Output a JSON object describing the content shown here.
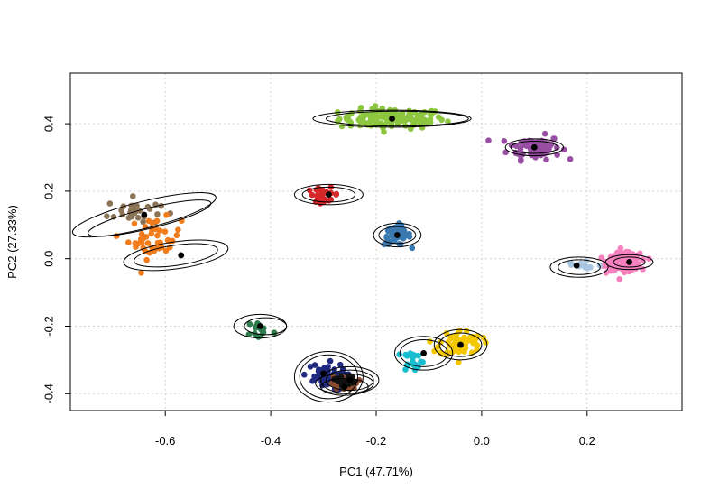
{
  "chart_data": {
    "type": "scatter",
    "title": "",
    "xlabel": "PC1 (47.71%)",
    "ylabel": "PC2 (27.33%)",
    "xlim": [
      -0.78,
      0.38
    ],
    "ylim": [
      -0.45,
      0.55
    ],
    "xticks": [
      -0.6,
      -0.4,
      -0.2,
      0.0,
      0.2
    ],
    "xtick_labels": [
      "-0.6",
      "-0.4",
      "-0.2",
      "0.0",
      "0.2"
    ],
    "yticks": [
      -0.4,
      -0.2,
      0.0,
      0.2,
      0.4
    ],
    "ytick_labels": [
      "-0.4",
      "-0.2",
      "0.0",
      "0.2",
      "0.4"
    ],
    "grid": true,
    "legend": "none",
    "series": [
      {
        "color": "#8dc63f",
        "center": [
          -0.17,
          0.415
        ],
        "spread": [
          0.1,
          0.03
        ],
        "n": 120,
        "ellipses": [
          {
            "c": [
              -0.17,
              0.415
            ],
            "r": [
              0.15,
              0.025
            ],
            "angle": 0
          },
          {
            "c": [
              -0.16,
              0.415
            ],
            "r": [
              0.135,
              0.022
            ],
            "angle": 0
          }
        ]
      },
      {
        "color": "#984ea3",
        "center": [
          0.1,
          0.33
        ],
        "spread": [
          0.05,
          0.035
        ],
        "n": 80,
        "ellipses": [
          {
            "c": [
              0.1,
              0.33
            ],
            "r": [
              0.055,
              0.025
            ],
            "angle": 0
          },
          {
            "c": [
              0.1,
              0.33
            ],
            "r": [
              0.045,
              0.018
            ],
            "angle": 0
          }
        ]
      },
      {
        "color": "#8b7355",
        "center": [
          -0.66,
          0.14
        ],
        "spread": [
          0.05,
          0.04
        ],
        "n": 30,
        "ellipses": [
          {
            "c": [
              -0.64,
              0.13
            ],
            "r": [
              0.14,
              0.04
            ],
            "angle": -14
          },
          {
            "c": [
              -0.63,
              0.12
            ],
            "r": [
              0.12,
              0.03
            ],
            "angle": -14
          }
        ]
      },
      {
        "color": "#f07c1c",
        "center": [
          -0.62,
          0.06
        ],
        "spread": [
          0.05,
          0.06
        ],
        "n": 45,
        "ellipses": [
          {
            "c": [
              -0.58,
              0.01
            ],
            "r": [
              0.1,
              0.04
            ],
            "angle": -8
          },
          {
            "c": [
              -0.58,
              0.01
            ],
            "r": [
              0.08,
              0.03
            ],
            "angle": -8
          }
        ]
      },
      {
        "color": "#d62728",
        "center": [
          -0.3,
          0.19
        ],
        "spread": [
          0.03,
          0.02
        ],
        "n": 25,
        "ellipses": [
          {
            "c": [
              -0.29,
              0.19
            ],
            "r": [
              0.065,
              0.03
            ],
            "angle": 0
          },
          {
            "c": [
              -0.29,
              0.19
            ],
            "r": [
              0.05,
              0.022
            ],
            "angle": 0
          }
        ]
      },
      {
        "color": "#3a78b0",
        "center": [
          -0.16,
          0.07
        ],
        "spread": [
          0.025,
          0.03
        ],
        "n": 55,
        "ellipses": [
          {
            "c": [
              -0.16,
              0.07
            ],
            "r": [
              0.045,
              0.035
            ],
            "angle": 0
          },
          {
            "c": [
              -0.16,
              0.07
            ],
            "r": [
              0.035,
              0.025
            ],
            "angle": 0
          }
        ]
      },
      {
        "color": "#f781bf",
        "center": [
          0.27,
          -0.01
        ],
        "spread": [
          0.03,
          0.025
        ],
        "n": 260,
        "ellipses": [
          {
            "c": [
              0.28,
              -0.01
            ],
            "r": [
              0.045,
              0.022
            ],
            "angle": 0
          },
          {
            "c": [
              0.28,
              -0.01
            ],
            "r": [
              0.03,
              0.015
            ],
            "angle": 0
          }
        ]
      },
      {
        "color": "#a9c6e0",
        "center": [
          0.19,
          -0.02
        ],
        "spread": [
          0.04,
          0.02
        ],
        "n": 15,
        "ellipses": [
          {
            "c": [
              0.185,
              -0.025
            ],
            "r": [
              0.055,
              0.03
            ],
            "angle": 0
          },
          {
            "c": [
              0.185,
              -0.025
            ],
            "r": [
              0.04,
              0.022
            ],
            "angle": 0
          }
        ]
      },
      {
        "color": "#2e7d4f",
        "center": [
          -0.42,
          -0.21
        ],
        "spread": [
          0.025,
          0.03
        ],
        "n": 15,
        "ellipses": [
          {
            "c": [
              -0.42,
              -0.2
            ],
            "r": [
              0.05,
              0.035
            ],
            "angle": 0
          },
          {
            "c": [
              -0.41,
              -0.2
            ],
            "r": [
              0.04,
              0.025
            ],
            "angle": 0
          }
        ]
      },
      {
        "color": "#f5c800",
        "center": [
          -0.04,
          -0.25
        ],
        "spread": [
          0.04,
          0.04
        ],
        "n": 70,
        "ellipses": [
          {
            "c": [
              -0.04,
              -0.255
            ],
            "r": [
              0.05,
              0.045
            ],
            "angle": 0
          },
          {
            "c": [
              -0.04,
              -0.255
            ],
            "r": [
              0.04,
              0.035
            ],
            "angle": 0
          }
        ]
      },
      {
        "color": "#17becf",
        "center": [
          -0.13,
          -0.3
        ],
        "spread": [
          0.02,
          0.03
        ],
        "n": 20,
        "ellipses": [
          {
            "c": [
              -0.11,
              -0.28
            ],
            "r": [
              0.055,
              0.05
            ],
            "angle": 0
          },
          {
            "c": [
              -0.11,
              -0.28
            ],
            "r": [
              0.045,
              0.04
            ],
            "angle": 0
          }
        ]
      },
      {
        "color": "#1f2a80",
        "center": [
          -0.3,
          -0.35
        ],
        "spread": [
          0.04,
          0.04
        ],
        "n": 55,
        "ellipses": [
          {
            "c": [
              -0.29,
              -0.35
            ],
            "r": [
              0.065,
              0.075
            ],
            "angle": 0
          },
          {
            "c": [
              -0.29,
              -0.35
            ],
            "r": [
              0.055,
              0.065
            ],
            "angle": 0
          }
        ]
      },
      {
        "color": "#8c4a2f",
        "center": [
          -0.26,
          -0.37
        ],
        "spread": [
          0.025,
          0.02
        ],
        "n": 25,
        "ellipses": [
          {
            "c": [
              -0.26,
              -0.37
            ],
            "r": [
              0.055,
              0.03
            ],
            "angle": 0
          },
          {
            "c": [
              -0.26,
              -0.38
            ],
            "r": [
              0.045,
              0.025
            ],
            "angle": 0
          }
        ]
      },
      {
        "color": "#111111",
        "center": [
          -0.26,
          -0.36
        ],
        "spread": [
          0.02,
          0.015
        ],
        "n": 15,
        "ellipses": [
          {
            "c": [
              -0.25,
              -0.36
            ],
            "r": [
              0.055,
              0.04
            ],
            "angle": 0
          },
          {
            "c": [
              -0.25,
              -0.36
            ],
            "r": [
              0.045,
              0.03
            ],
            "angle": 0
          }
        ]
      }
    ],
    "centroids": [
      [
        -0.17,
        0.415
      ],
      [
        0.1,
        0.33
      ],
      [
        -0.64,
        0.13
      ],
      [
        -0.57,
        0.01
      ],
      [
        -0.29,
        0.19
      ],
      [
        -0.16,
        0.07
      ],
      [
        0.28,
        -0.01
      ],
      [
        0.18,
        -0.02
      ],
      [
        -0.42,
        -0.2
      ],
      [
        -0.04,
        -0.255
      ],
      [
        -0.11,
        -0.28
      ],
      [
        -0.3,
        -0.34
      ],
      [
        -0.26,
        -0.38
      ],
      [
        -0.25,
        -0.36
      ]
    ]
  }
}
